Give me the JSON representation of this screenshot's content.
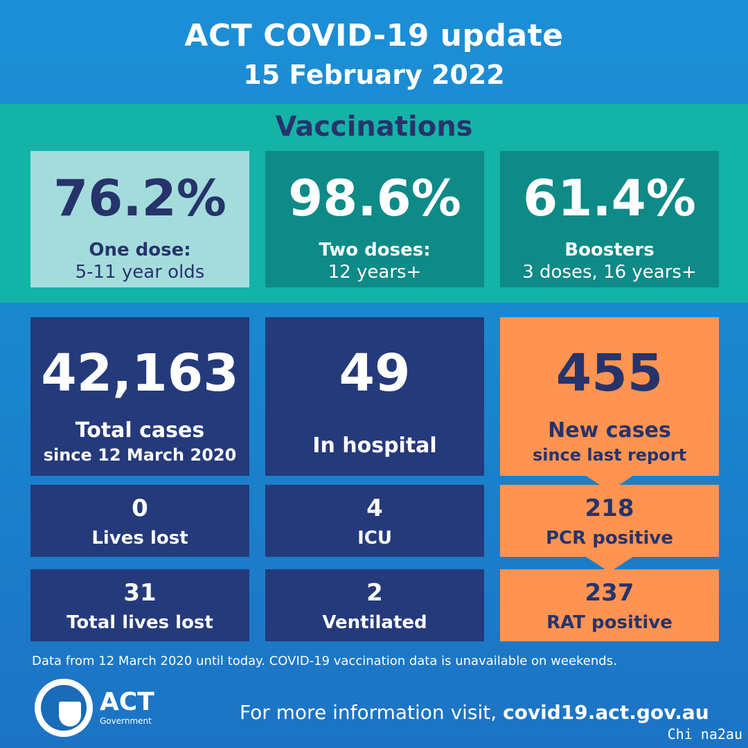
{
  "header": {
    "title": "ACT COVID-19 update",
    "date": "15 February 2022"
  },
  "vaccinations": {
    "title": "Vaccinations",
    "items": [
      {
        "value": "76.2%",
        "label": "One dose:",
        "sub": "5-11 year olds"
      },
      {
        "value": "98.6%",
        "label": "Two doses:",
        "sub": "12 years+"
      },
      {
        "value": "61.4%",
        "label": "Boosters",
        "sub": "3 doses, 16 years+"
      }
    ]
  },
  "cases": {
    "total": {
      "value": "42,163",
      "label": "Total cases",
      "sub": "since 12 March 2020"
    },
    "hospital": {
      "value": "49",
      "label": "In hospital"
    },
    "new": {
      "value": "455",
      "label": "New cases",
      "sub": "since last report"
    },
    "lives_lost": {
      "value": "0",
      "label": "Lives lost"
    },
    "icu": {
      "value": "4",
      "label": "ICU"
    },
    "pcr": {
      "value": "218",
      "label": "PCR positive"
    },
    "total_lives_lost": {
      "value": "31",
      "label": "Total lives lost"
    },
    "ventilated": {
      "value": "2",
      "label": "Ventilated"
    },
    "rat": {
      "value": "237",
      "label": "RAT positive"
    }
  },
  "footnote": "Data from 12 March 2020 until today.  COVID-19 vaccination data is unavailable on weekends.",
  "logo": {
    "name": "ACT",
    "sub": "Government"
  },
  "more_info": {
    "prefix": "For more information visit, ",
    "url": "covid19.act.gov.au"
  },
  "watermark": "Chi na2au",
  "colors": {
    "header_blue": "#1c8fd6",
    "teal_band": "#14b3a7",
    "navy_box": "#243a7a",
    "orange_box": "#ff9452",
    "light_teal": "#a4dcdc",
    "text_navy": "#27336b"
  }
}
